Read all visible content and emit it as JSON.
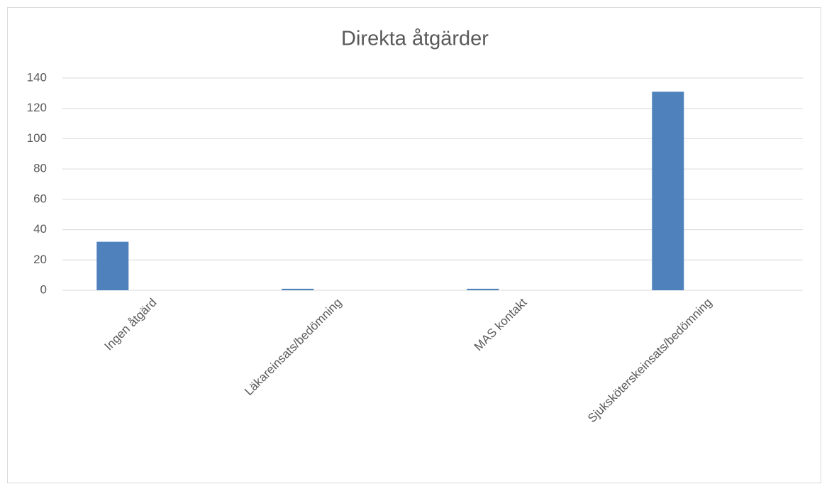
{
  "chart_data": {
    "type": "bar",
    "title": "Direkta åtgärder",
    "categories": [
      "Ingen åtgärd",
      "Läkareinsats/bedömning",
      "MAS kontakt",
      "Sjuksköterskeinsats/bedömning"
    ],
    "values": [
      32,
      1,
      1,
      131
    ],
    "color": "#4f81bd",
    "ylim": [
      0,
      140
    ],
    "yticks": [
      0,
      20,
      40,
      60,
      80,
      100,
      120,
      140
    ],
    "grid": true
  }
}
